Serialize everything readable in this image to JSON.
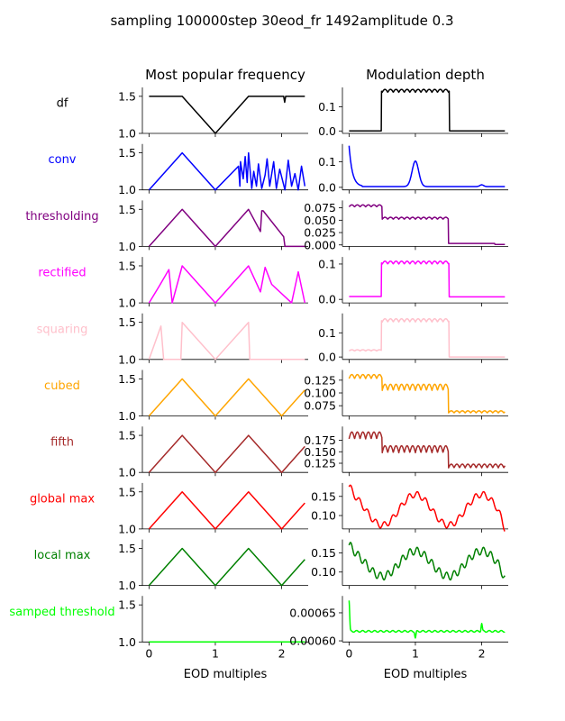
{
  "title": "sampling 100000step 30eod_fr 1492amplitude 0.3",
  "col_titles": [
    "Most popular frequency",
    "Modulation depth"
  ],
  "xlabel": "EOD multiples",
  "chart_data": {
    "type": "line",
    "title": "sampling 100000step 30eod_fr 1492amplitude 0.3",
    "xlabel": "EOD multiples",
    "x_range": [
      -0.1,
      2.4
    ],
    "x_ticks": [
      0,
      1,
      2
    ],
    "rows": [
      {
        "name": "df",
        "color": "#000000",
        "freq": {
          "ylim": [
            1.0,
            1.62
          ],
          "yticks": [
            1.0,
            1.5
          ],
          "x": [
            0,
            0.5,
            1,
            1.5,
            2.03,
            2.045,
            2.06,
            2.35
          ],
          "y": [
            1.5,
            1.5,
            1.0,
            1.5,
            1.5,
            1.42,
            1.5,
            1.5
          ]
        },
        "depth": {
          "ylim": [
            -0.01,
            0.18
          ],
          "yticks": [
            0.0,
            0.1
          ],
          "profile": "df",
          "x": [
            0,
            2.35
          ]
        }
      },
      {
        "name": "conv",
        "color": "#0000ff",
        "freq": {
          "ylim": [
            1.0,
            1.62
          ],
          "yticks": [
            1.0,
            1.5
          ],
          "x": [
            0,
            0.5,
            1,
            1.35,
            1.37,
            1.38,
            1.42,
            1.45,
            1.48,
            1.5,
            1.55,
            1.58,
            1.62,
            1.65,
            1.7,
            1.75,
            1.78,
            1.82,
            1.88,
            1.92,
            1.97,
            2.05,
            2.1,
            2.15,
            2.2,
            2.25,
            2.3,
            2.35
          ],
          "y": [
            1.0,
            1.5,
            1.0,
            1.32,
            1.05,
            1.38,
            1.15,
            1.45,
            1.1,
            1.5,
            1.02,
            1.25,
            1.05,
            1.35,
            1.02,
            1.2,
            1.42,
            1.05,
            1.38,
            1.02,
            1.28,
            1.0,
            1.4,
            1.05,
            1.22,
            1.0,
            1.32,
            1.05
          ]
        },
        "depth": {
          "ylim": [
            -0.01,
            0.17
          ],
          "yticks": [
            0.0,
            0.1
          ],
          "profile": "conv",
          "x": [
            0,
            2.35
          ]
        }
      },
      {
        "name": "thresholding",
        "color": "#800080",
        "freq": {
          "ylim": [
            1.0,
            1.62
          ],
          "yticks": [
            1.0,
            1.5
          ],
          "x": [
            0,
            0.5,
            1,
            1.5,
            1.68,
            1.7,
            1.72,
            2.03,
            2.05,
            2.07,
            2.35
          ],
          "y": [
            1.0,
            1.5,
            1.0,
            1.5,
            1.2,
            1.48,
            1.48,
            1.13,
            1.0,
            1.0,
            1.0
          ]
        },
        "depth": {
          "ylim": [
            -0.003,
            0.09
          ],
          "yticks": [
            0.0,
            0.025,
            0.05,
            0.075
          ],
          "profile": "thresholding",
          "x": [
            0,
            2.35
          ]
        }
      },
      {
        "name": "rectified",
        "color": "#ff00ff",
        "freq": {
          "ylim": [
            1.0,
            1.62
          ],
          "yticks": [
            1.0,
            1.5
          ],
          "x": [
            0,
            0.15,
            0.3,
            0.35,
            0.5,
            1,
            1.5,
            1.68,
            1.75,
            1.85,
            2.15,
            2.25,
            2.35
          ],
          "y": [
            1.0,
            1.22,
            1.45,
            1.0,
            1.5,
            1.0,
            1.5,
            1.15,
            1.48,
            1.25,
            1.0,
            1.42,
            1.0
          ]
        },
        "depth": {
          "ylim": [
            -0.01,
            0.12
          ],
          "yticks": [
            0.0,
            0.1
          ],
          "profile": "rectified",
          "x": [
            0,
            2.35
          ]
        }
      },
      {
        "name": "squaring",
        "color": "#ffc0cb",
        "freq": {
          "ylim": [
            1.0,
            1.62
          ],
          "yticks": [
            1.0,
            1.5
          ],
          "x": [
            0,
            0.18,
            0.22,
            0.48,
            0.5,
            1,
            1.5,
            1.52,
            2.35
          ],
          "y": [
            1.0,
            1.45,
            1.0,
            1.0,
            1.5,
            1.0,
            1.5,
            1.0,
            1.0
          ]
        },
        "depth": {
          "ylim": [
            -0.01,
            0.18
          ],
          "yticks": [
            0.0,
            0.1
          ],
          "profile": "squaring",
          "x": [
            0,
            2.35
          ]
        }
      },
      {
        "name": "cubed",
        "color": "#ffa500",
        "freq": {
          "ylim": [
            1.0,
            1.62
          ],
          "yticks": [
            1.0,
            1.5
          ],
          "x": [
            0,
            0.5,
            1,
            1.5,
            2,
            2.35
          ],
          "y": [
            1.0,
            1.5,
            1.0,
            1.5,
            1.0,
            1.35
          ]
        },
        "depth": {
          "ylim": [
            0.055,
            0.145
          ],
          "yticks": [
            0.075,
            0.1,
            0.125
          ],
          "profile": "cubed",
          "x": [
            0,
            2.35
          ]
        }
      },
      {
        "name": "fifth",
        "color": "#a52a2a",
        "freq": {
          "ylim": [
            1.0,
            1.62
          ],
          "yticks": [
            1.0,
            1.5
          ],
          "x": [
            0,
            0.5,
            1,
            1.5,
            2,
            2.35
          ],
          "y": [
            1.0,
            1.5,
            1.0,
            1.5,
            1.0,
            1.35
          ]
        },
        "depth": {
          "ylim": [
            0.105,
            0.205
          ],
          "yticks": [
            0.125,
            0.15,
            0.175
          ],
          "profile": "fifth",
          "x": [
            0,
            2.35
          ]
        }
      },
      {
        "name": "global max",
        "color": "#ff0000",
        "freq": {
          "ylim": [
            1.0,
            1.62
          ],
          "yticks": [
            1.0,
            1.5
          ],
          "x": [
            0,
            0.5,
            1,
            1.5,
            2,
            2.35
          ],
          "y": [
            1.0,
            1.5,
            1.0,
            1.5,
            1.0,
            1.35
          ]
        },
        "depth": {
          "ylim": [
            0.065,
            0.185
          ],
          "yticks": [
            0.1,
            0.15
          ],
          "profile": "globalmax",
          "x": [
            0,
            2.35
          ]
        }
      },
      {
        "name": "local max",
        "color": "#008000",
        "freq": {
          "ylim": [
            1.0,
            1.62
          ],
          "yticks": [
            1.0,
            1.5
          ],
          "x": [
            0,
            0.5,
            1,
            1.5,
            2,
            2.35
          ],
          "y": [
            1.0,
            1.5,
            1.0,
            1.5,
            1.0,
            1.35
          ]
        },
        "depth": {
          "ylim": [
            0.065,
            0.185
          ],
          "yticks": [
            0.1,
            0.15
          ],
          "profile": "localmax",
          "x": [
            0,
            2.35
          ]
        }
      },
      {
        "name": "samped threshold",
        "color": "#00ff00",
        "freq": {
          "ylim": [
            1.0,
            1.62
          ],
          "yticks": [
            1.0,
            1.5
          ],
          "x": [
            0,
            2.35
          ],
          "y": [
            1.0,
            1.0
          ]
        },
        "depth": {
          "ylim": [
            0.000598,
            0.00068
          ],
          "yticks": [
            0.0006,
            0.00065
          ],
          "profile": "samped",
          "x": [
            0,
            2.35
          ]
        }
      }
    ]
  }
}
